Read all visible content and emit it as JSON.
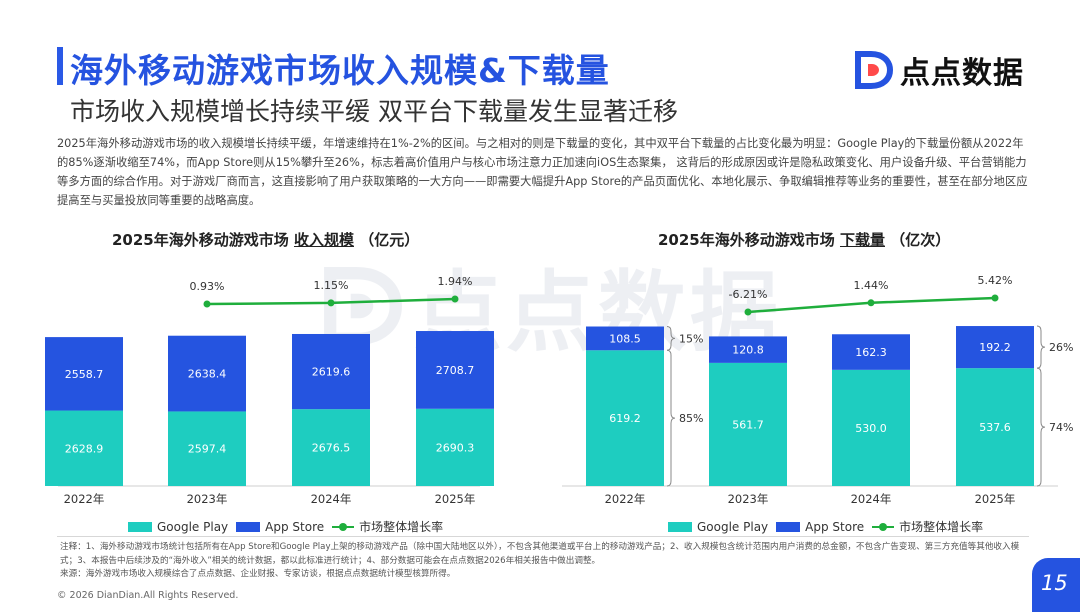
{
  "header": {
    "title": "海外移动游戏市场收入规模&下载量",
    "subtitle": "市场收入规模增长持续平缓 双平台下载量发生显著迁移"
  },
  "logo": {
    "text": "点点数据",
    "icon": "dd-logo-icon"
  },
  "description": "2025年海外移动游戏市场的收入规模增长持续平缓，年增速维持在1%-2%的区间。与之相对的则是下载量的变化，其中双平台下载量的占比变化最为明显：Google Play的下载量份额从2022年的85%逐渐收缩至74%，而App Store则从15%攀升至26%，标志着高价值用户与核心市场注意力正加速向iOS生态聚集， 这背后的形成原因或许是隐私政策变化、用户设备升级、平台营销能力等多方面的综合作用。对于游戏厂商而言，这直接影响了用户获取策略的一大方向——即需要大幅提升App Store的产品页面优化、本地化展示、争取编辑推荐等业务的重要性，甚至在部分地区应提高至与买量投放同等重要的战略高度。",
  "colors": {
    "google_play": "#1ecdc0",
    "app_store": "#2554e0",
    "growth": "#1fae3c",
    "accent": "#2553e0"
  },
  "chart_data": [
    {
      "type": "bar",
      "title_prefix": "2025年海外移动游戏市场",
      "title_emph": "收入规模",
      "title_unit": "（亿元）",
      "categories": [
        "2022年",
        "2023年",
        "2024年",
        "2025年"
      ],
      "series": [
        {
          "name": "Google Play",
          "values": [
            2628.9,
            2597.4,
            2676.5,
            2690.3
          ],
          "labels": [
            "2628.9",
            "2597.4",
            "2676.5",
            "2690.3"
          ]
        },
        {
          "name": "App Store",
          "values": [
            2558.7,
            2638.4,
            2619.6,
            2708.7
          ],
          "labels": [
            "2558.7",
            "2638.4",
            "2619.6",
            "2708.7"
          ]
        }
      ],
      "growth": {
        "name": "市场整体增长率",
        "categories": [
          "2023年",
          "2024年",
          "2025年"
        ],
        "values": [
          0.93,
          1.15,
          1.94
        ],
        "labels": [
          "0.93%",
          "1.15%",
          "1.94%"
        ]
      },
      "stacked": true
    },
    {
      "type": "bar",
      "title_prefix": "2025年海外移动游戏市场",
      "title_emph": "下载量",
      "title_unit": "（亿次）",
      "categories": [
        "2022年",
        "2023年",
        "2024年",
        "2025年"
      ],
      "series": [
        {
          "name": "Google Play",
          "values": [
            619.2,
            561.7,
            530.0,
            537.6
          ],
          "labels": [
            "619.2",
            "561.7",
            "530.0",
            "537.6"
          ]
        },
        {
          "name": "App Store",
          "values": [
            108.5,
            120.8,
            162.3,
            192.2
          ],
          "labels": [
            "108.5",
            "120.8",
            "162.3",
            "192.2"
          ]
        }
      ],
      "growth": {
        "name": "市场整体增长率",
        "categories": [
          "2023年",
          "2024年",
          "2025年"
        ],
        "values": [
          -6.21,
          1.44,
          5.42
        ],
        "labels": [
          "-6.21%",
          "1.44%",
          "5.42%"
        ]
      },
      "share_2022": {
        "app_store": "15%",
        "google_play": "85%"
      },
      "share_2025": {
        "app_store": "26%",
        "google_play": "74%"
      },
      "stacked": true
    }
  ],
  "legend": {
    "google_play": "Google Play",
    "app_store": "App Store",
    "growth": "市场整体增长率"
  },
  "notes": {
    "line1": "注释：1、海外移动游戏市场统计包括所有在App Store和Google Play上架的移动游戏产品（除中国大陆地区以外），不包含其他渠道或平台上的移动游戏产品；2、收入规模包含统计范围内用户消费的总金额，不包含广告变现、第三方充值等其他收入模式；3、本报告中后续涉及的“海外收入”相关的统计数据，都以此标准进行统计；4、部分数据可能会在点点数据2026年相关报告中做出调整。",
    "line2": "来源：海外游戏市场收入规模综合了点点数据、企业财报、专家访谈，根据点点数据统计模型核算所得。"
  },
  "footer": {
    "copyright": "© 2026 DianDian.All Rights Reserved.",
    "page_number": "15"
  }
}
